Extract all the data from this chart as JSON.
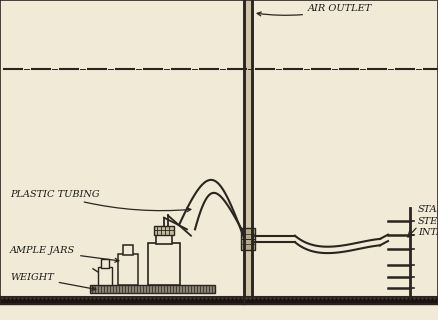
{
  "bg_color": "#f0ead6",
  "line_color": "#2a2520",
  "text_color": "#1a1a1a",
  "labels": {
    "air_outlet": "AIR OUTLET",
    "plastic_tubing": "PLASTIC TUBING",
    "sample_jars": "AMPLE JARS",
    "weight": "WEIGHT",
    "stainless_steel": "STAINLESS\nSTEEL\nINTAKES"
  },
  "figsize": [
    4.38,
    3.2
  ],
  "dpi": 100
}
